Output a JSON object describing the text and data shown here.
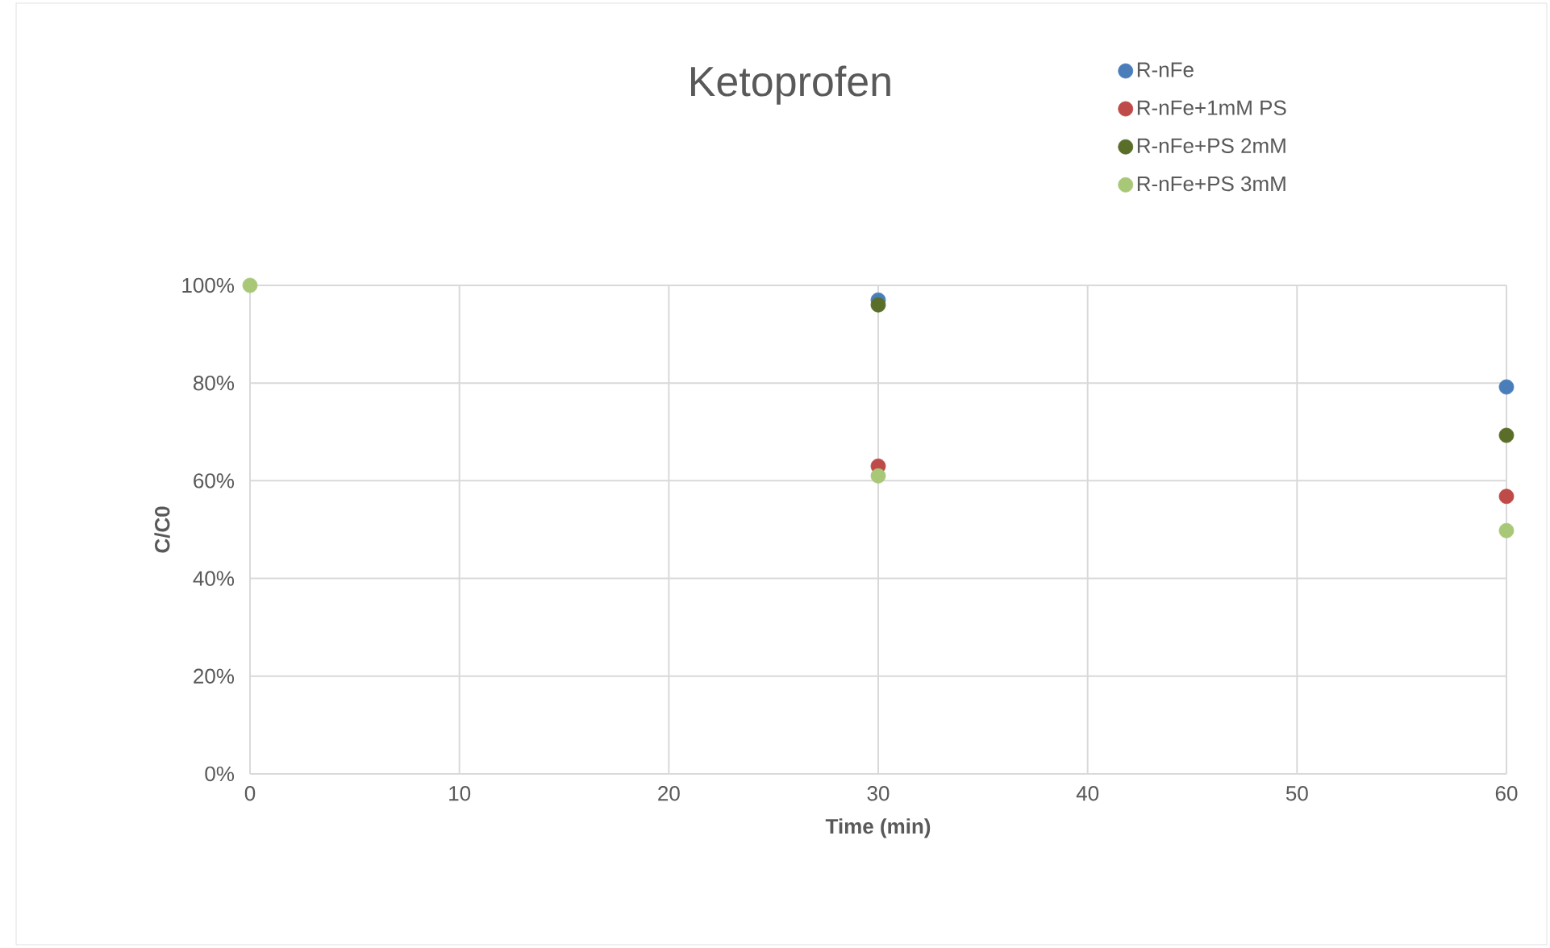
{
  "chart_data": {
    "type": "scatter",
    "title": "Ketoprofen",
    "xlabel": "Time (min)",
    "ylabel": "C/C0",
    "x": [
      0,
      30,
      60
    ],
    "series": [
      {
        "name": "R-nFe",
        "color": "#4a7ebb",
        "values": [
          null,
          97,
          79.2
        ]
      },
      {
        "name": "R-nFe+1mM PS",
        "color": "#be4b48",
        "values": [
          null,
          63,
          56.8
        ]
      },
      {
        "name": "R-nFe+PS 2mM",
        "color": "#5a6e29",
        "values": [
          null,
          96,
          69.3
        ]
      },
      {
        "name": "R-nFe+PS 3mM",
        "color": "#a8c878",
        "values": [
          100,
          61,
          49.8
        ]
      }
    ],
    "xlim": [
      0,
      60
    ],
    "xticks": [
      0,
      10,
      20,
      30,
      40,
      50,
      60
    ],
    "ylim": [
      0,
      100
    ],
    "yticks": [
      {
        "value": 0,
        "label": "0%"
      },
      {
        "value": 20,
        "label": "20%"
      },
      {
        "value": 40,
        "label": "40%"
      },
      {
        "value": 60,
        "label": "60%"
      },
      {
        "value": 80,
        "label": "80%"
      },
      {
        "value": 100,
        "label": "100%"
      }
    ],
    "grid": true,
    "legend": "top right",
    "marker": "circle"
  }
}
